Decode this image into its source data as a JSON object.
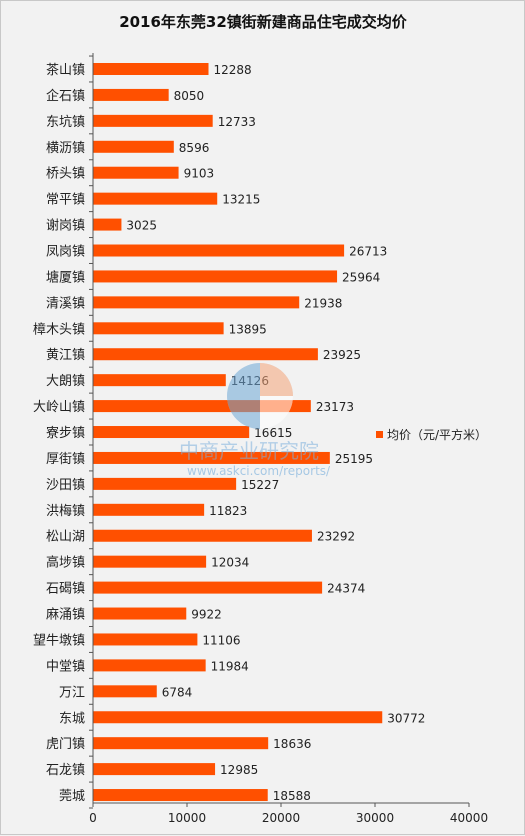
{
  "chart_data": {
    "type": "bar",
    "orientation": "horizontal",
    "title": "2016年东莞32镇街新建商品住宅成交均价",
    "categories": [
      "茶山镇",
      "企石镇",
      "东坑镇",
      "横沥镇",
      "桥头镇",
      "常平镇",
      "谢岗镇",
      "凤岗镇",
      "塘厦镇",
      "清溪镇",
      "樟木头镇",
      "黄江镇",
      "大朗镇",
      "大岭山镇",
      "寮步镇",
      "厚街镇",
      "沙田镇",
      "洪梅镇",
      "松山湖",
      "高埗镇",
      "石碣镇",
      "麻涌镇",
      "望牛墩镇",
      "中堂镇",
      "万江",
      "东城",
      "虎门镇",
      "石龙镇",
      "莞城"
    ],
    "series": [
      {
        "name": "均价（元/平方米）",
        "values": [
          12288,
          8050,
          12733,
          8596,
          9103,
          13215,
          3025,
          26713,
          25964,
          21938,
          13895,
          23925,
          14126,
          23173,
          16615,
          25195,
          15227,
          11823,
          23292,
          12034,
          24374,
          9922,
          11106,
          11984,
          6784,
          30772,
          18636,
          12985,
          18588
        ]
      }
    ],
    "xlim": [
      0,
      40000
    ],
    "xticks": [
      "0",
      "10000",
      "20000",
      "30000",
      "40000"
    ],
    "xtick_values": [
      0,
      10000,
      20000,
      30000,
      40000
    ],
    "legend_position": "right",
    "grid": false,
    "bar_color": "#ff5000"
  },
  "watermark": {
    "text": "中商产业研究院",
    "url": "www.askci.com/reports/"
  }
}
